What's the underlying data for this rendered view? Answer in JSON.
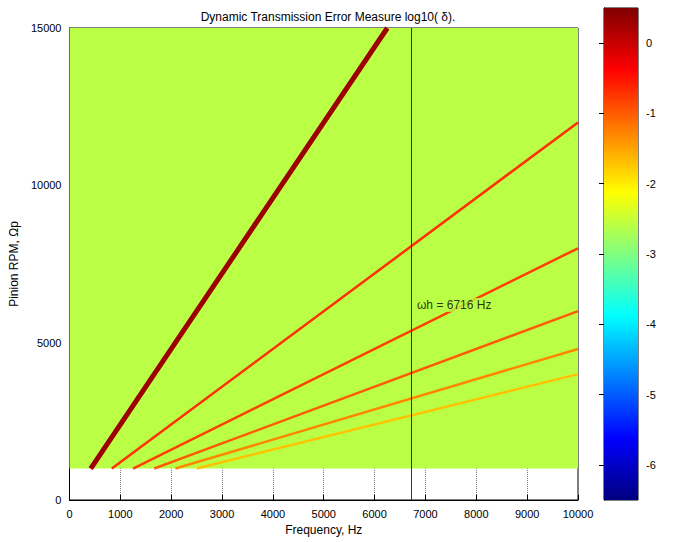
{
  "chart_data": {
    "type": "heatmap",
    "title": "Dynamic Transmission Error Measure log10( δ).",
    "x_label": "Frequency, Hz",
    "y_label": "Pinion RPM, Ωp",
    "xlim": [
      0,
      10000
    ],
    "xticks": [
      0,
      1000,
      2000,
      3000,
      4000,
      5000,
      6000,
      7000,
      8000,
      9000,
      10000
    ],
    "ylim": [
      0,
      15000
    ],
    "yticks": [
      0,
      5000,
      10000,
      15000
    ],
    "grid": true,
    "background": {
      "x": [
        0,
        10000
      ],
      "y": [
        1000,
        15000
      ],
      "level": -2.6
    },
    "series": [
      {
        "values": [
          [
            417,
            1000
          ],
          [
            2083,
            5000
          ],
          [
            4167,
            10000
          ],
          [
            6250,
            15000
          ]
        ],
        "level": 0.3
      },
      {
        "values": [
          [
            833,
            1000
          ],
          [
            10000,
            12000
          ]
        ],
        "level": -0.7
      },
      {
        "values": [
          [
            1250,
            1000
          ],
          [
            10000,
            8000
          ]
        ],
        "level": -0.8
      },
      {
        "values": [
          [
            1667,
            1000
          ],
          [
            10000,
            6000
          ]
        ],
        "level": -1.0
      },
      {
        "values": [
          [
            2083,
            1000
          ],
          [
            10000,
            4800
          ]
        ],
        "level": -1.3
      },
      {
        "values": [
          [
            2500,
            1000
          ],
          [
            10000,
            4000
          ]
        ],
        "level": -1.7
      }
    ],
    "colorbar": {
      "range": [
        -6.5,
        0.5
      ],
      "ticks": [
        -6,
        -5,
        -4,
        -3,
        -2,
        -1,
        0
      ]
    },
    "annotations": [
      {
        "text": "ωh = 6716 Hz",
        "x": 6716,
        "y": 6200
      }
    ]
  }
}
